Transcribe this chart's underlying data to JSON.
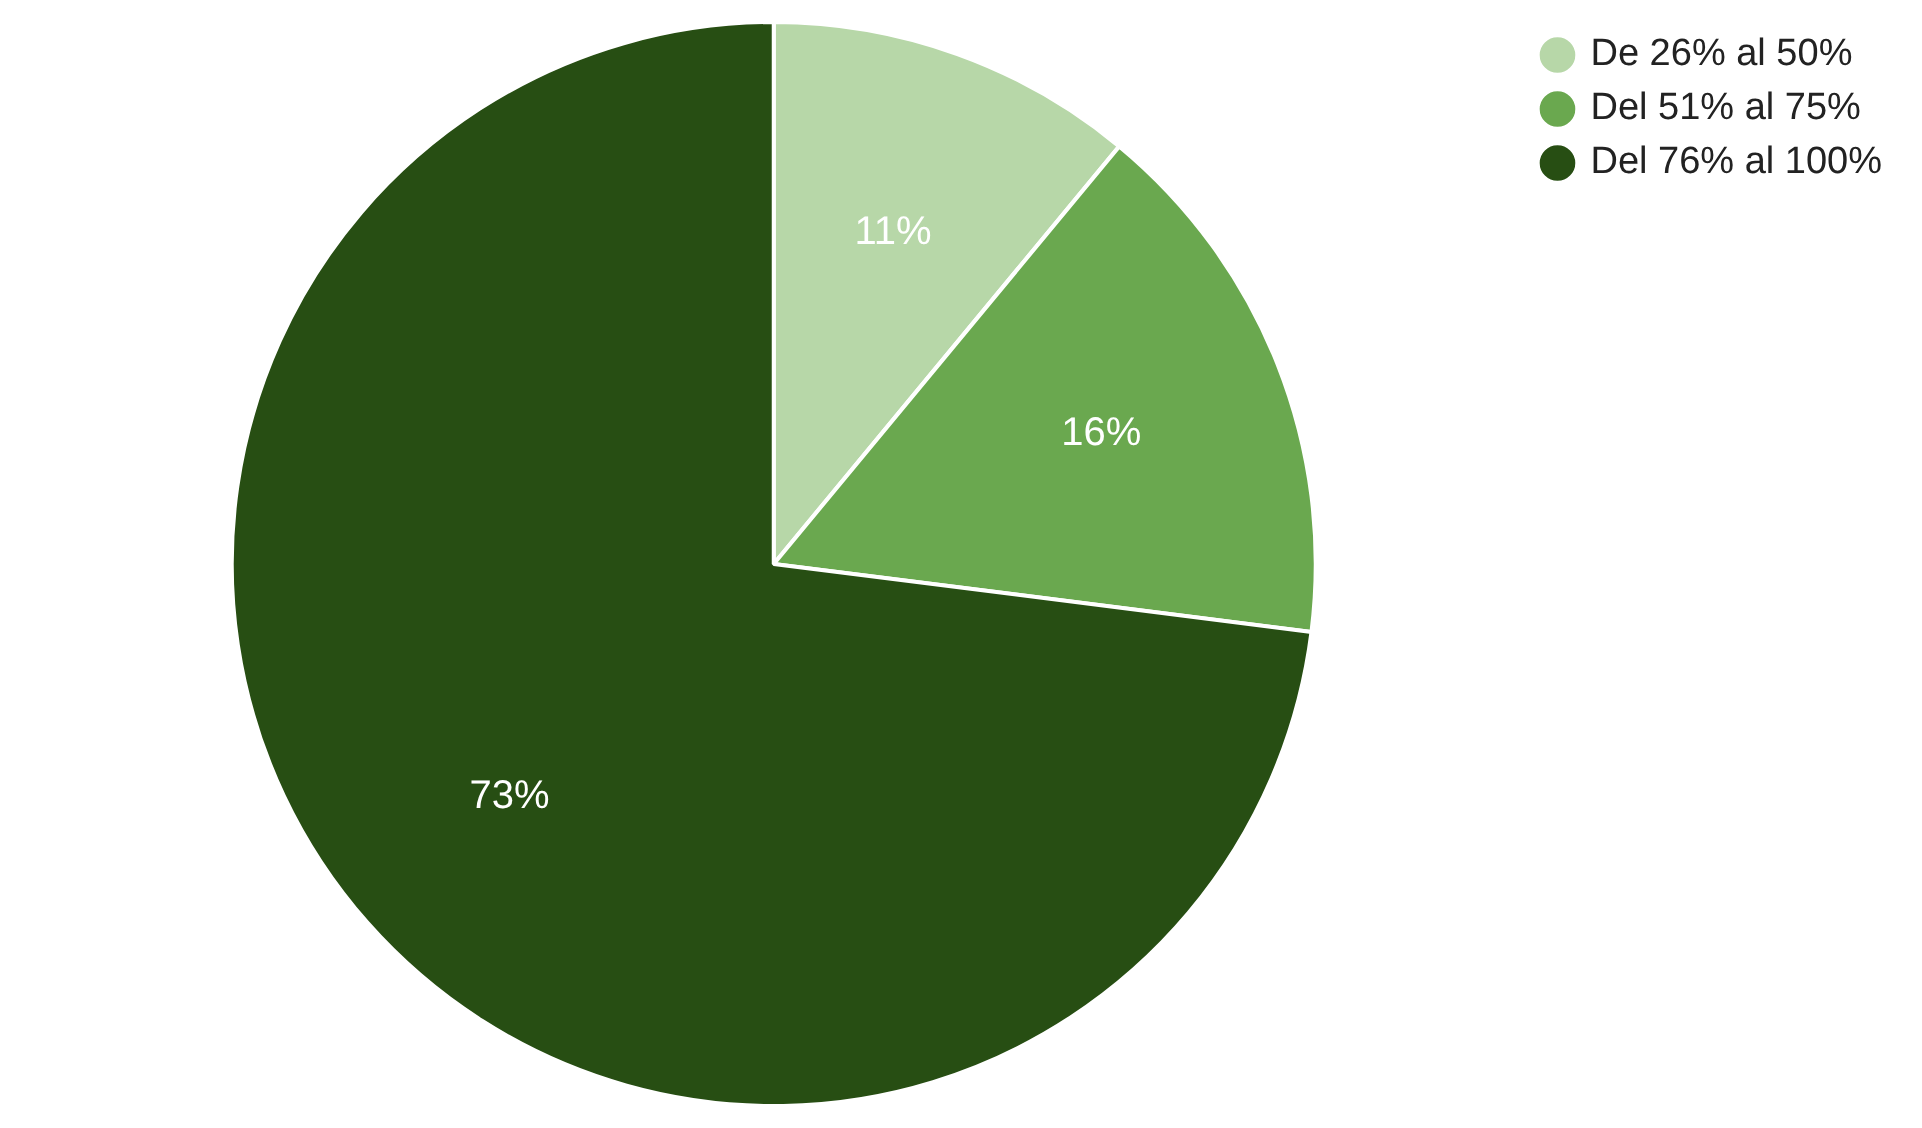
{
  "chart_data": {
    "type": "pie",
    "categories": [
      "De 26% al 50%",
      "Del 51% al 75%",
      "Del 76% al 100%"
    ],
    "values": [
      11,
      16,
      73
    ],
    "colors": [
      "#b7d7a8",
      "#6aa84f",
      "#274e13"
    ],
    "value_labels": [
      "11%",
      "16%",
      "73%"
    ],
    "legend": "top right"
  }
}
